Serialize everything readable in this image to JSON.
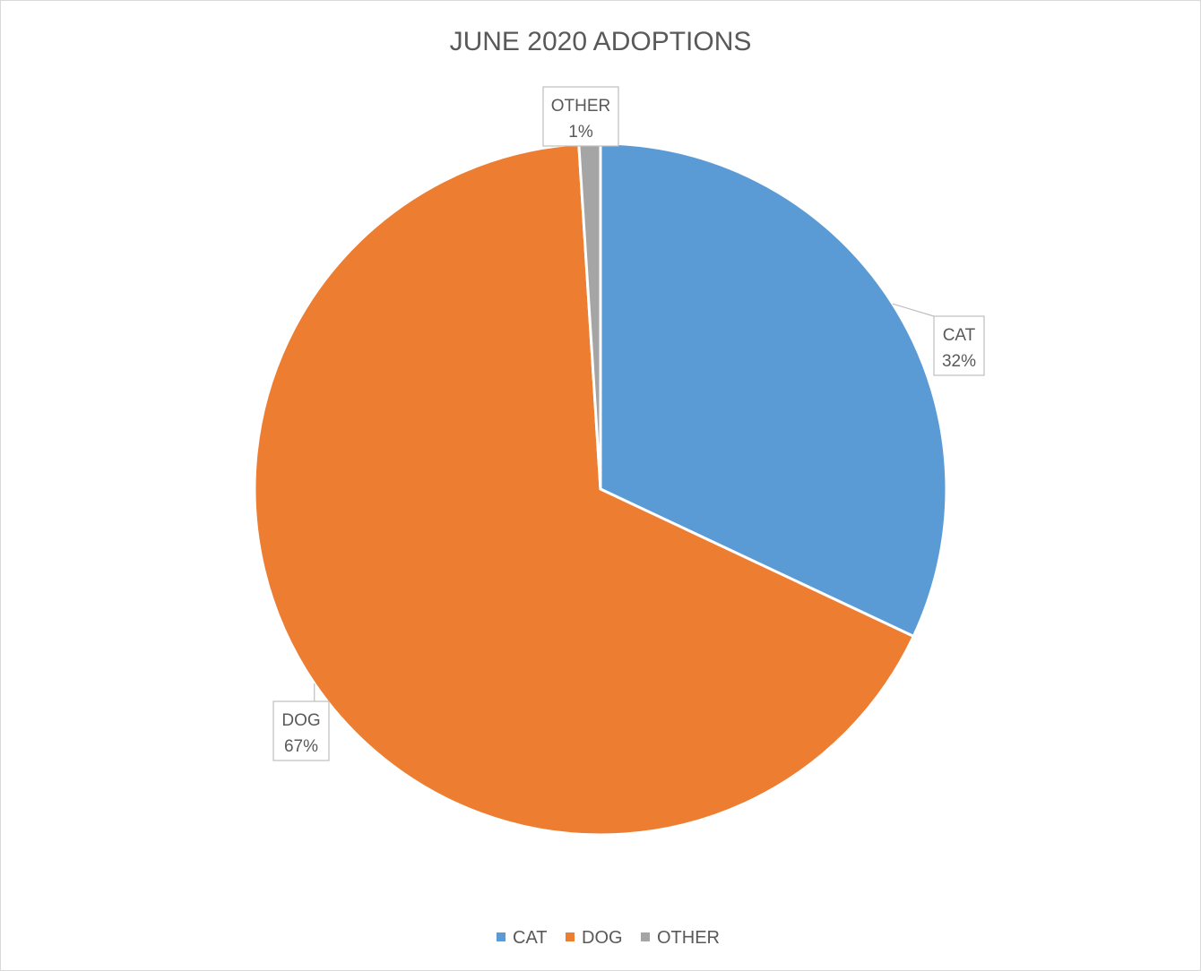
{
  "chart_data": {
    "type": "pie",
    "title": "JUNE 2020 ADOPTIONS",
    "categories": [
      "CAT",
      "DOG",
      "OTHER"
    ],
    "values": [
      32,
      67,
      1
    ],
    "units": "%",
    "data_labels": [
      {
        "category": "CAT",
        "percent": "32%"
      },
      {
        "category": "DOG",
        "percent": "67%"
      },
      {
        "category": "OTHER",
        "percent": "1%"
      }
    ],
    "colors": [
      "#5B9BD5",
      "#ED7D31",
      "#A5A5A5"
    ],
    "legend": {
      "position": "bottom",
      "entries": [
        "CAT",
        "DOG",
        "OTHER"
      ]
    }
  }
}
